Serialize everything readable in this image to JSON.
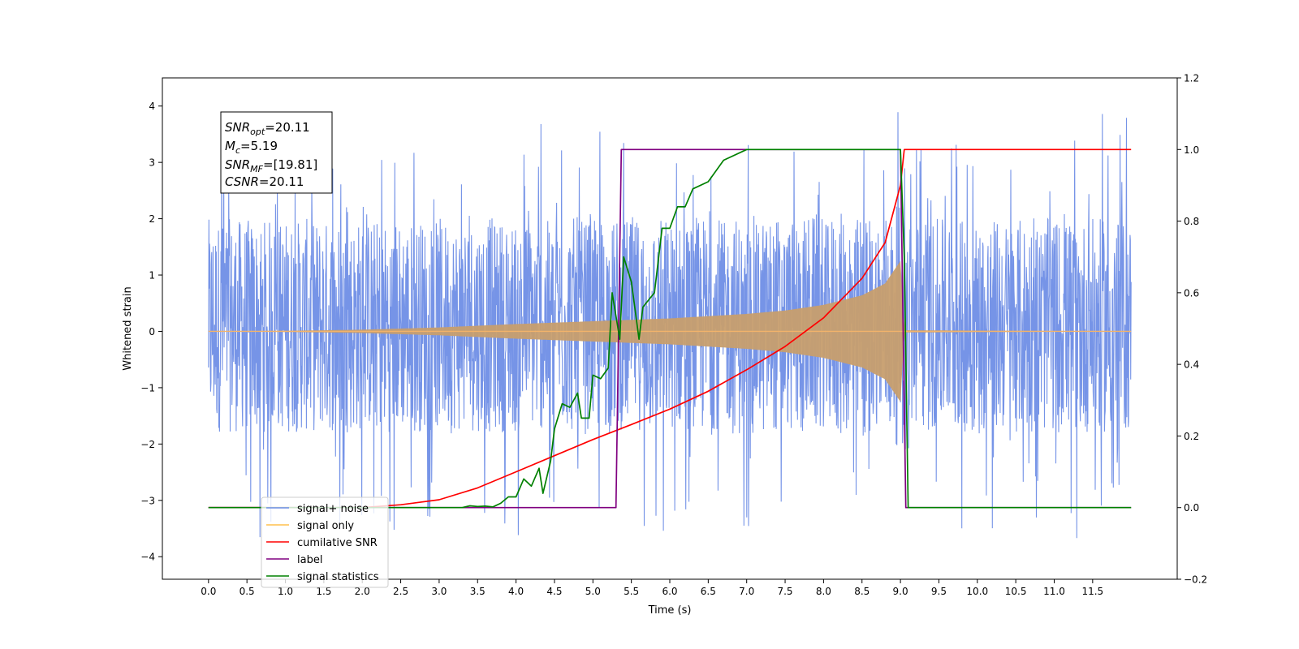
{
  "chart_data": {
    "type": "line",
    "xlabel": "Time (s)",
    "ylabel_left": "Whitened strain",
    "xlim": [
      -0.6,
      12.6
    ],
    "ylim_left": [
      -4.4,
      4.5
    ],
    "ylim_right": [
      -0.2,
      1.2
    ],
    "x_ticks": [
      0.0,
      0.5,
      1.0,
      1.5,
      2.0,
      2.5,
      3.0,
      3.5,
      4.0,
      4.5,
      5.0,
      5.5,
      6.0,
      6.5,
      7.0,
      7.5,
      8.0,
      8.5,
      9.0,
      9.5,
      10.0,
      10.5,
      11.0,
      11.5
    ],
    "x_tick_labels": [
      "0.0",
      "0.5",
      "1.0",
      "1.5",
      "2.0",
      "2.5",
      "3.0",
      "3.5",
      "4.0",
      "4.5",
      "5.0",
      "5.5",
      "6.0",
      "6.5",
      "7.0",
      "7.5",
      "8.0",
      "8.5",
      "9.0",
      "9.5",
      "10.0",
      "10.5",
      "11.0",
      "11.5"
    ],
    "y_left_ticks": [
      4,
      3,
      2,
      1,
      0,
      -1,
      -2,
      -3,
      -4
    ],
    "y_left_tick_labels": [
      "4",
      "3",
      "2",
      "1",
      "0",
      "−1",
      "−2",
      "−3",
      "−4"
    ],
    "y_right_ticks": [
      1.2,
      1.0,
      0.8,
      0.6,
      0.4,
      0.2,
      0.0,
      -0.2
    ],
    "y_right_tick_labels": [
      "1.2",
      "1.0",
      "0.8",
      "0.6",
      "0.4",
      "0.2",
      "0.0",
      "−0.2"
    ],
    "grid": false,
    "legend_placement": "lower-left",
    "legend": [
      {
        "label": "signal+ noise",
        "color": "#6f8ee6"
      },
      {
        "label": "signal only",
        "color": "#ffc04d"
      },
      {
        "label": "cumilative SNR",
        "color": "#ff0000"
      },
      {
        "label": "label",
        "color": "#800080"
      },
      {
        "label": "signal statistics",
        "color": "#008000"
      }
    ],
    "annotation": {
      "line1": {
        "base": "SNR",
        "sub": "opt",
        "value": "=20.11"
      },
      "line2": {
        "base": "M",
        "sub": "c",
        "value": "=5.19"
      },
      "line3": {
        "base": "SNR",
        "sub": "MF",
        "value": "=[19.81]"
      },
      "line4": {
        "base": "CSNR",
        "sub": "",
        "value": "=20.11"
      }
    },
    "series": [
      {
        "name": "signal+ noise",
        "axis": "left",
        "color": "#6f8ee6",
        "style": "noise",
        "x_range": [
          0.0,
          12.0
        ],
        "amplitude_band": [
          -1.8,
          2.0
        ],
        "extremes": {
          "max": 4.1,
          "min": -4.0
        }
      },
      {
        "name": "signal only",
        "axis": "left",
        "color": "#c79e6e",
        "style": "chirp_envelope",
        "envelope_x": [
          0.0,
          1.0,
          2.0,
          3.0,
          4.0,
          5.0,
          6.0,
          7.0,
          7.5,
          8.0,
          8.5,
          8.8,
          9.0,
          9.05,
          12.0
        ],
        "envelope_amp": [
          0.0,
          0.01,
          0.03,
          0.07,
          0.13,
          0.18,
          0.23,
          0.31,
          0.37,
          0.47,
          0.64,
          0.85,
          1.25,
          0.02,
          0.0
        ]
      },
      {
        "name": "cumilative SNR",
        "axis": "right",
        "color": "#ff0000",
        "x": [
          0.0,
          2.0,
          2.5,
          3.0,
          3.5,
          4.0,
          4.5,
          5.0,
          5.5,
          6.0,
          6.5,
          7.0,
          7.5,
          8.0,
          8.5,
          8.8,
          9.0,
          9.05,
          12.0
        ],
        "y": [
          0.0,
          0.0,
          0.008,
          0.022,
          0.055,
          0.1,
          0.145,
          0.19,
          0.232,
          0.275,
          0.325,
          0.385,
          0.45,
          0.53,
          0.64,
          0.74,
          0.9,
          1.0,
          1.0
        ]
      },
      {
        "name": "label",
        "axis": "right",
        "color": "#800080",
        "x": [
          0.0,
          5.3,
          5.37,
          9.0,
          9.07,
          12.0
        ],
        "y": [
          0.0,
          0.0,
          1.0,
          1.0,
          0.0,
          0.0
        ]
      },
      {
        "name": "signal statistics",
        "axis": "right",
        "color": "#008000",
        "x": [
          0.0,
          3.3,
          3.4,
          3.5,
          3.6,
          3.7,
          3.8,
          3.9,
          4.0,
          4.1,
          4.2,
          4.3,
          4.35,
          4.45,
          4.5,
          4.6,
          4.7,
          4.8,
          4.85,
          4.95,
          5.0,
          5.1,
          5.2,
          5.25,
          5.35,
          5.4,
          5.5,
          5.6,
          5.65,
          5.8,
          5.9,
          6.0,
          6.1,
          6.2,
          6.3,
          6.5,
          6.7,
          7.0,
          9.0,
          9.05,
          9.1,
          12.0
        ],
        "y": [
          0.0,
          0.0,
          0.005,
          0.003,
          0.004,
          0.002,
          0.012,
          0.03,
          0.03,
          0.08,
          0.06,
          0.11,
          0.04,
          0.13,
          0.22,
          0.29,
          0.28,
          0.32,
          0.25,
          0.25,
          0.37,
          0.36,
          0.39,
          0.6,
          0.47,
          0.7,
          0.63,
          0.47,
          0.56,
          0.6,
          0.78,
          0.78,
          0.84,
          0.84,
          0.89,
          0.91,
          0.97,
          1.0,
          1.0,
          0.7,
          0.0,
          0.0
        ]
      }
    ]
  }
}
